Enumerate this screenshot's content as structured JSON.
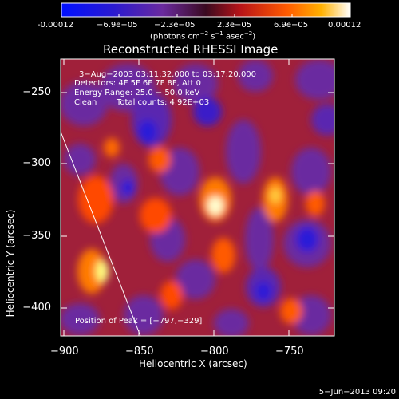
{
  "colorbar": {
    "ticks": [
      "-0.00012",
      "−6.9e−05",
      "−2.3e−05",
      "2.3e−05",
      "6.9e−05",
      "0.00012"
    ],
    "unit_prefix": "(photons cm",
    "unit_exp1": "−2",
    "unit_mid": " s",
    "unit_exp2": "−1",
    "unit_mid2": " asec",
    "unit_exp3": "−2",
    "unit_suffix": ")"
  },
  "title": "Reconstructed RHESSI Image",
  "annotations": {
    "time_range": "3−Aug−2003 03:11:32.000 to 03:17:20.000",
    "detectors": "Detectors: 4F 5F 6F 7F 8F, Att 0",
    "energy": "Energy Range: 25.0 − 50.0 keV",
    "clean_label": "Clean",
    "total_counts": "Total counts: 4.92E+03",
    "peak": "Position of Peak = [−797,−329]"
  },
  "axes": {
    "x_label": "Heliocentric X (arcsec)",
    "y_label": "Heliocentric Y (arcsec)",
    "x_ticks": [
      "−900",
      "−850",
      "−800",
      "−750"
    ],
    "y_ticks": [
      "−250",
      "−300",
      "−350",
      "−400"
    ]
  },
  "footer_date": "5−Jun−2013 09:20",
  "colors": {
    "background": "#000000",
    "cmap_low": "#1a10c8",
    "cmap_mid_low": "#6a2a9e",
    "cmap_mid": "#a81e3a",
    "cmap_high": "#ff6a00",
    "cmap_peak": "#ffffd0"
  }
}
